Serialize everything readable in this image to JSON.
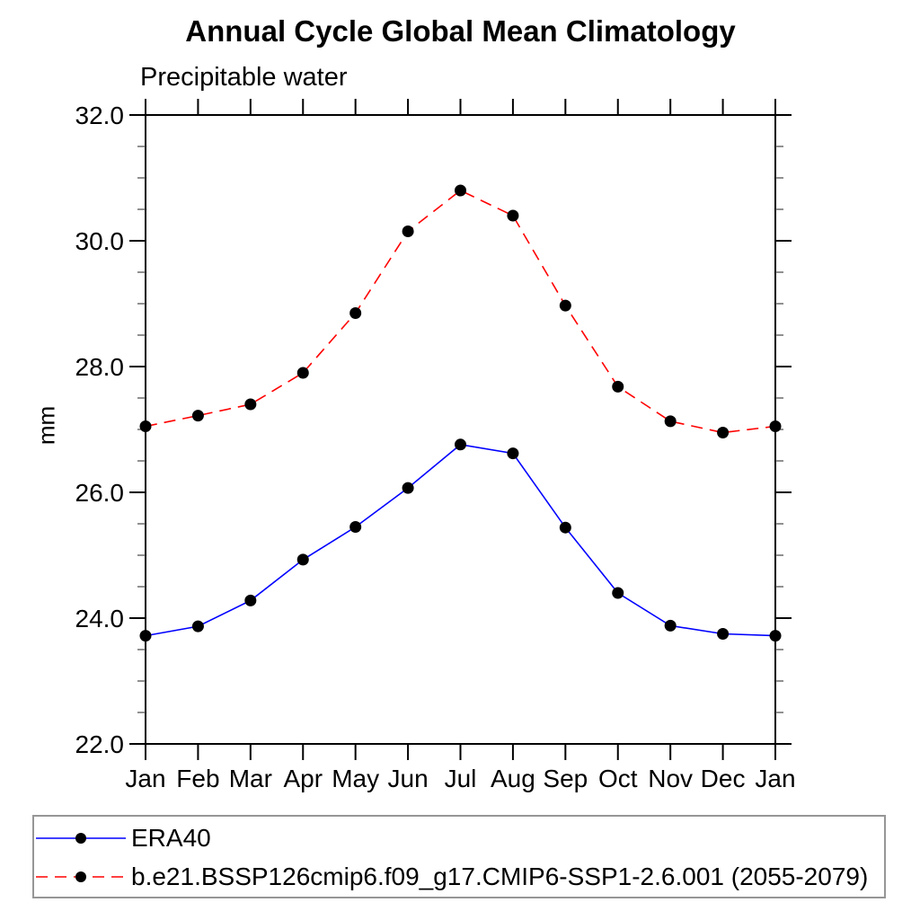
{
  "chart_data": {
    "type": "line",
    "title": "Annual Cycle Global Mean Climatology",
    "subtitle": "Precipitable water",
    "xlabel": "",
    "ylabel": "mm",
    "categories": [
      "Jan",
      "Feb",
      "Mar",
      "Apr",
      "May",
      "Jun",
      "Jul",
      "Aug",
      "Sep",
      "Oct",
      "Nov",
      "Dec",
      "Jan"
    ],
    "ylim": [
      22.0,
      32.0
    ],
    "ytick_major_interval": 2.0,
    "ytick_minor_interval": 0.5,
    "ytick_labels": [
      "22.0",
      "24.0",
      "26.0",
      "28.0",
      "30.0",
      "32.0"
    ],
    "grid": false,
    "legend_position": "bottom",
    "series": [
      {
        "name": "ERA40",
        "line_style": "solid",
        "color": "#0000ff",
        "marker": "circle",
        "marker_color": "#000000",
        "values": [
          23.72,
          23.87,
          24.28,
          24.93,
          25.45,
          26.07,
          26.76,
          26.62,
          25.44,
          24.4,
          23.88,
          23.75,
          23.72
        ]
      },
      {
        "name": "b.e21.BSSP126cmip6.f09_g17.CMIP6-SSP1-2.6.001 (2055-2079)",
        "line_style": "dashed",
        "color": "#ff0000",
        "marker": "circle",
        "marker_color": "#000000",
        "values": [
          27.05,
          27.22,
          27.4,
          27.9,
          28.85,
          30.15,
          30.8,
          30.4,
          28.97,
          27.68,
          27.13,
          26.95,
          27.05
        ]
      }
    ]
  }
}
